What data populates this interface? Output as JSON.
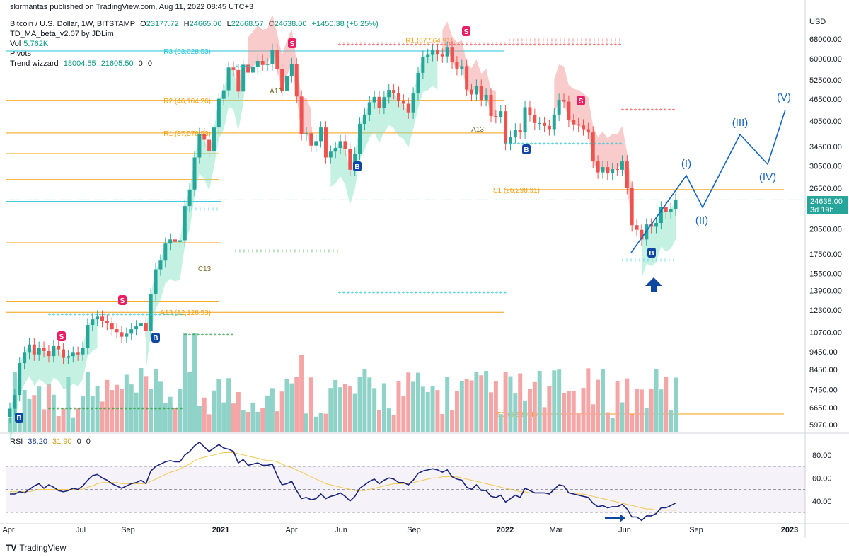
{
  "publisher_line": "skirmantas published on TradingView.com, Aug 11, 2022 08:45 UTC+3",
  "legend": {
    "symbol": "Bitcoin / U.S. Dollar, 1W, BITSTAMP",
    "o_label": "O",
    "o": "23177.72",
    "h_label": "H",
    "h": "24665.00",
    "l_label": "L",
    "l": "22668.57",
    "c_label": "C",
    "c": "24638.00",
    "change": "+1450.38 (+6.25%)",
    "indicator": "TD_MA_beta_v2.07 by JDLim",
    "vol_label": "Vol",
    "vol": "5.762K",
    "pivots": "Pivots",
    "trend_label": "Trend wizzard",
    "trend_1": "18004.55",
    "trend_2": "21605.50",
    "trend_3": "0",
    "trend_4": "0"
  },
  "rsi_legend": {
    "label": "RSI",
    "v1": "38.20",
    "v2": "31.90",
    "v3": "0",
    "v4": "0"
  },
  "watermark": "TradingView",
  "chart_data": {
    "type": "candlestick",
    "currency": "USD",
    "price_axis_ticks": [
      "68000.00",
      "60000.00",
      "52500.00",
      "46500.00",
      "40500.00",
      "34500.00",
      "30500.00",
      "26500.00",
      "20500.00",
      "17500.00",
      "15500.00",
      "13900.00",
      "12300.00",
      "10700.00",
      "9450.00",
      "8450.00",
      "7450.00",
      "6650.00",
      "5970.00"
    ],
    "last_price": "24638.00",
    "countdown": "3d 19h",
    "time_axis": [
      "Apr",
      "Jul",
      "Sep",
      "2021",
      "Apr",
      "Jun",
      "Sep",
      "2022",
      "Mar",
      "Jun",
      "Sep",
      "2023"
    ],
    "pivot_levels": [
      {
        "label": "R1 (67,564.91)",
        "value": 67564.91
      },
      {
        "label": "R3 (63,028.53)",
        "value": 63028.53
      },
      {
        "label": "R2 (46,164.26)",
        "value": 46164.26
      },
      {
        "label": "R1 (37,578.53)",
        "value": 37578.53
      },
      {
        "label": "S1 (26,298.91)",
        "value": 26298.91
      },
      {
        "label": "A13 (12,128.53)",
        "value": 12128.53
      },
      {
        "label": "S2 (6,383.46)",
        "value": 6383.46
      }
    ],
    "weekly_closes": [
      6600,
      7200,
      8800,
      9400,
      9900,
      9300,
      9700,
      9500,
      9200,
      9800,
      9600,
      9100,
      9200,
      9400,
      9300,
      9700,
      11200,
      11600,
      11800,
      11500,
      11300,
      10900,
      10700,
      10400,
      10600,
      10900,
      11100,
      11300,
      10800,
      13600,
      15900,
      16800,
      18700,
      19200,
      18900,
      19100,
      23700,
      26300,
      32200,
      37300,
      36000,
      33500,
      38900,
      46600,
      49200,
      56800,
      55900,
      48800,
      57800,
      55000,
      56900,
      59200,
      57700,
      58000,
      63500,
      56200,
      49100,
      53800,
      58000,
      47300,
      37300,
      37500,
      34700,
      35700,
      38900,
      32200,
      33400,
      34200,
      35700,
      33900,
      29800,
      33000,
      39800,
      42200,
      45600,
      47200,
      44100,
      47100,
      49300,
      48400,
      46100,
      45200,
      42800,
      48200,
      54900,
      60800,
      61500,
      63300,
      61600,
      60900,
      64400,
      58700,
      56300,
      57300,
      49400,
      47900,
      50600,
      46300,
      47800,
      41800,
      41600,
      43100,
      35100,
      36700,
      38400,
      37700,
      44200,
      42100,
      40000,
      40000,
      39300,
      38500,
      42200,
      46300,
      45800,
      40700,
      39700,
      39400,
      38500,
      37700,
      31400,
      29300,
      30300,
      29100,
      29900,
      29800,
      31400,
      26600,
      21000,
      20400,
      19200,
      21100,
      20800,
      21300,
      23500,
      22800,
      23200,
      24638
    ],
    "rsi": {
      "label": "RSI",
      "value": 38.2,
      "signal": 31.9,
      "ticks": [
        80.0,
        60.0,
        40.0
      ],
      "band": [
        30,
        70
      ],
      "points": [
        46,
        46,
        48,
        47,
        50,
        53,
        55,
        51,
        54,
        52,
        49,
        48,
        49,
        51,
        50,
        53,
        58,
        62,
        63,
        60,
        58,
        55,
        53,
        51,
        53,
        55,
        56,
        58,
        55,
        66,
        70,
        72,
        74,
        75,
        74,
        74,
        80,
        83,
        88,
        91,
        87,
        83,
        86,
        89,
        86,
        85,
        83,
        73,
        76,
        71,
        72,
        73,
        71,
        71,
        72,
        62,
        54,
        55,
        57,
        49,
        42,
        43,
        41,
        42,
        46,
        42,
        44,
        45,
        47,
        44,
        40,
        44,
        51,
        54,
        57,
        59,
        55,
        58,
        60,
        59,
        56,
        56,
        54,
        58,
        64,
        66,
        67,
        68,
        67,
        65,
        67,
        61,
        59,
        58,
        52,
        50,
        54,
        49,
        49,
        44,
        43,
        45,
        39,
        42,
        45,
        43,
        51,
        49,
        47,
        47,
        47,
        46,
        50,
        54,
        53,
        47,
        46,
        45,
        44,
        43,
        38,
        35,
        36,
        34,
        35,
        35,
        37,
        33,
        26,
        26,
        23,
        27,
        27,
        29,
        34,
        34,
        36,
        38.2
      ],
      "signal_points": [
        48,
        48,
        48,
        48,
        48,
        49,
        50,
        50,
        50,
        50,
        50,
        50,
        50,
        50,
        50,
        50,
        52,
        53,
        55,
        56,
        56,
        56,
        56,
        55,
        55,
        55,
        55,
        55,
        55,
        57,
        59,
        61,
        63,
        65,
        66,
        68,
        70,
        72,
        75,
        77,
        78,
        79,
        80,
        81,
        82,
        82,
        82,
        81,
        80,
        79,
        78,
        77,
        76,
        75,
        75,
        74,
        72,
        70,
        69,
        67,
        65,
        63,
        61,
        59,
        57,
        55,
        54,
        53,
        52,
        51,
        50,
        49,
        49,
        49,
        50,
        51,
        52,
        53,
        54,
        55,
        55,
        55,
        55,
        56,
        57,
        58,
        59,
        60,
        60,
        61,
        61,
        61,
        61,
        60,
        59,
        58,
        57,
        56,
        55,
        54,
        53,
        52,
        51,
        50,
        49,
        48,
        48,
        47,
        47,
        47,
        47,
        47,
        47,
        47,
        47,
        47,
        47,
        46,
        46,
        45,
        44,
        43,
        42,
        41,
        40,
        39,
        38,
        37,
        36,
        35,
        34,
        33,
        33,
        32,
        32,
        32,
        32,
        31.9
      ]
    },
    "elliott_wave_labels": [
      "(I)",
      "(II)",
      "(III)",
      "(IV)",
      "(V)"
    ],
    "td_markers": [
      "S",
      "B",
      "A13",
      "C13"
    ]
  }
}
